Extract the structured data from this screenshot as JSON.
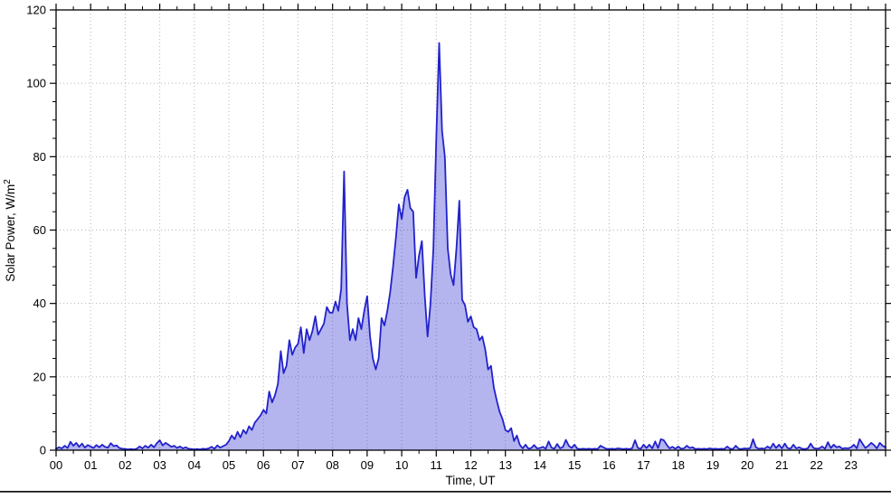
{
  "chart_data": {
    "type": "area",
    "title": "",
    "xlabel": "Time, UT",
    "ylabel": "Solar Power, W/m²",
    "ylabel_main": "Solar Power, W/m",
    "ylabel_sup": "2",
    "xlim": [
      0,
      24
    ],
    "ylim": [
      0,
      120
    ],
    "x_tick_labels": [
      "00",
      "01",
      "02",
      "03",
      "04",
      "05",
      "06",
      "07",
      "08",
      "09",
      "10",
      "11",
      "12",
      "13",
      "14",
      "15",
      "16",
      "17",
      "18",
      "19",
      "20",
      "21",
      "22",
      "23"
    ],
    "y_ticks": [
      0,
      20,
      40,
      60,
      80,
      100,
      120
    ],
    "y_tick_labels": [
      "0",
      "20",
      "40",
      "60",
      "80",
      "100",
      "120"
    ],
    "x_minor_tick_interval_hours": 0.5,
    "y_minor_tick_interval": 5,
    "grid": "dotted",
    "legend": "none",
    "colors": {
      "line": "#2222cc",
      "fill": "#2828d2",
      "fill_opacity": 0.35,
      "grid": "#b5b5b5",
      "axis": "#000000",
      "divider": "#111111"
    },
    "series_name": "solar-power",
    "sample_interval_minutes": 5,
    "sample_start": "00:00",
    "samples": [
      0.4,
      0.8,
      0.5,
      1.2,
      0.6,
      2.3,
      1.2,
      2.0,
      0.9,
      1.8,
      0.7,
      1.4,
      1.0,
      0.6,
      1.4,
      0.8,
      1.5,
      0.9,
      0.7,
      1.9,
      1.1,
      1.3,
      0.6,
      0.4,
      0.3,
      0.2,
      0.3,
      0.2,
      0.4,
      1.0,
      0.5,
      1.2,
      0.7,
      1.5,
      0.8,
      1.9,
      2.7,
      1.3,
      2.0,
      1.5,
      0.9,
      1.2,
      0.6,
      1.0,
      0.5,
      0.8,
      0.4,
      0.3,
      0.2,
      0.3,
      0.2,
      0.4,
      0.3,
      0.5,
      0.9,
      0.4,
      1.3,
      0.7,
      1.1,
      1.5,
      2.5,
      4.0,
      3.0,
      5.0,
      3.5,
      5.5,
      4.5,
      6.5,
      5.5,
      7.5,
      8.5,
      9.5,
      11,
      10,
      16,
      13,
      15,
      18,
      27,
      21,
      23,
      30,
      26,
      28,
      29,
      33.5,
      26.5,
      33,
      30,
      32.5,
      36.5,
      31.5,
      33,
      34.5,
      39,
      37.5,
      37.5,
      40.5,
      38,
      44,
      76,
      40,
      30,
      33,
      30,
      36,
      33,
      38,
      42,
      31,
      25,
      22,
      25,
      36,
      34,
      38,
      43,
      50,
      58,
      67,
      63,
      69,
      71,
      66,
      65,
      47,
      53,
      57,
      42,
      31,
      40,
      55,
      85,
      111,
      87,
      80,
      55,
      48,
      45,
      55,
      68,
      41,
      39.5,
      35,
      36.5,
      33.5,
      33,
      30,
      31,
      27.5,
      22,
      23,
      17,
      13.5,
      10.5,
      8.5,
      5.5,
      5,
      6,
      2.5,
      4,
      1.5,
      0.5,
      1.5,
      0.4,
      0.6,
      1.4,
      0.5,
      0.6,
      0.9,
      0.4,
      2.4,
      0.7,
      0.4,
      1.7,
      0.5,
      0.9,
      2.8,
      1.2,
      0.6,
      1.5,
      0.4,
      0.3,
      0.4,
      0.3,
      0.4,
      0.3,
      0.4,
      0.3,
      1.2,
      0.8,
      0.4,
      0.3,
      0.4,
      0.3,
      0.5,
      0.4,
      0.3,
      0.4,
      0.3,
      0.5,
      2.7,
      0.6,
      0.4,
      1.5,
      0.6,
      1.5,
      0.5,
      2.4,
      0.6,
      3.0,
      2.7,
      1.5,
      0.5,
      0.9,
      0.4,
      1.0,
      0.4,
      0.5,
      1.2,
      0.6,
      0.8,
      0.3,
      0.4,
      0.3,
      0.4,
      0.3,
      0.5,
      0.3,
      0.4,
      0.3,
      0.4,
      0.3,
      1.0,
      0.4,
      0.3,
      1.2,
      0.4,
      0.3,
      0.5,
      0.4,
      0.6,
      3.0,
      0.8,
      0.4,
      0.5,
      0.4,
      1.0,
      0.5,
      1.8,
      0.6,
      1.5,
      0.5,
      1.8,
      0.6,
      0.4,
      1.5,
      0.5,
      0.8,
      0.4,
      0.3,
      0.5,
      1.8,
      0.6,
      0.4,
      0.5,
      1.0,
      0.4,
      2.2,
      0.6,
      1.5,
      0.8,
      1.0,
      0.4,
      0.6,
      0.5,
      0.8,
      1.5,
      0.5,
      3.0,
      1.8,
      0.6,
      1.2,
      2.0,
      1.4,
      0.5,
      2.0,
      1.2,
      0.8
    ]
  }
}
